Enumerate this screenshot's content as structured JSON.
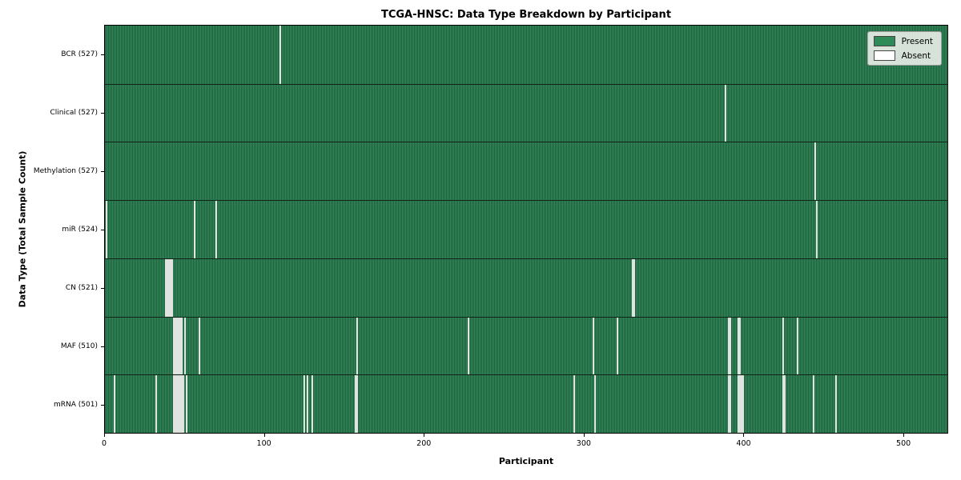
{
  "title": "TCGA-HNSC: Data Type Breakdown by Participant",
  "axes": {
    "xlabel": "Participant",
    "ylabel": "Data Type (Total Sample Count)"
  },
  "legend": {
    "items": [
      {
        "label": "Present",
        "color": "#2e8b57"
      },
      {
        "label": "Absent",
        "color": "#ffffff"
      }
    ]
  },
  "chart_data": {
    "type": "heatmap",
    "title": "TCGA-HNSC: Data Type Breakdown by Participant",
    "xlabel": "Participant",
    "ylabel": "Data Type (Total Sample Count)",
    "legend_entries": [
      "Present",
      "Absent"
    ],
    "legend_position": "upper right",
    "grid": false,
    "xlim": [
      0,
      528
    ],
    "total_participants": 528,
    "x_ticks": [
      0,
      100,
      200,
      300,
      400,
      500
    ],
    "colors": {
      "present": "#2e8b57",
      "bar_edge": "#1f5e3d",
      "absent": "#ffffff"
    },
    "rows": [
      {
        "name": "BCR",
        "label": "BCR (527)",
        "present_count": 527,
        "absent_participants": [
          110
        ]
      },
      {
        "name": "Clinical",
        "label": "Clinical (527)",
        "present_count": 527,
        "absent_participants": [
          389
        ]
      },
      {
        "name": "Methylation",
        "label": "Methylation (527)",
        "present_count": 527,
        "absent_participants": [
          445
        ]
      },
      {
        "name": "miR",
        "label": "miR (524)",
        "present_count": 524,
        "absent_participants": [
          1,
          56,
          70,
          446
        ]
      },
      {
        "name": "CN",
        "label": "CN (521)",
        "present_count": 521,
        "absent_participants": [
          38,
          39,
          40,
          41,
          42,
          331,
          332
        ]
      },
      {
        "name": "MAF",
        "label": "MAF (510)",
        "present_count": 510,
        "absent_participants": [
          43,
          44,
          45,
          46,
          47,
          48,
          50,
          59,
          158,
          228,
          306,
          321,
          391,
          392,
          397,
          398,
          425,
          434
        ]
      },
      {
        "name": "mRNA",
        "label": "mRNA (501)",
        "present_count": 501,
        "absent_participants": [
          6,
          32,
          43,
          44,
          45,
          46,
          47,
          48,
          49,
          51,
          125,
          127,
          130,
          157,
          158,
          294,
          307,
          391,
          392,
          397,
          398,
          399,
          400,
          425,
          426,
          444,
          458
        ]
      }
    ]
  }
}
